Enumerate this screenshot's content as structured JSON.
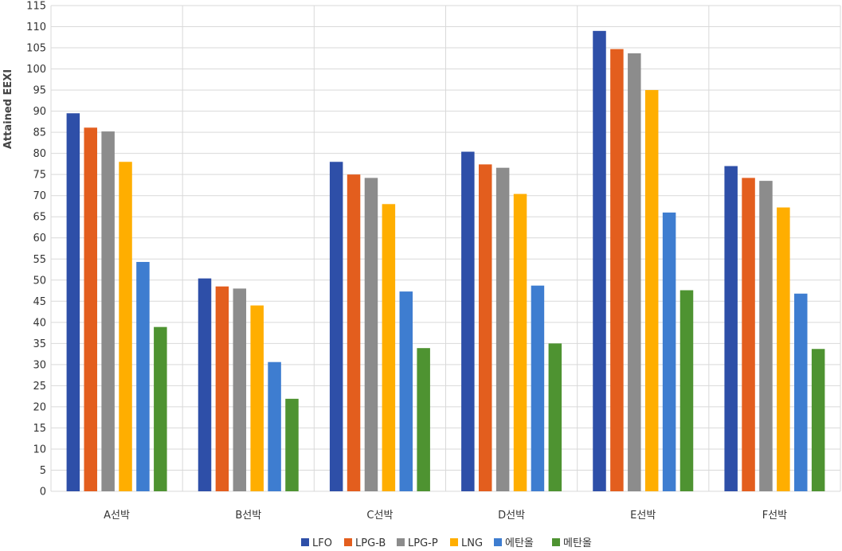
{
  "chart_data": {
    "type": "bar",
    "ylabel": "Attained EEXI",
    "xlabel": "",
    "ylim": [
      0,
      115
    ],
    "ytick_step": 5,
    "grid": true,
    "legend_position": "bottom",
    "categories": [
      "A선박",
      "B선박",
      "C선박",
      "D선박",
      "E선박",
      "F선박"
    ],
    "series": [
      {
        "name": "LFO",
        "color": "#2E4FA8",
        "values": [
          89.5,
          50.4,
          78.0,
          80.4,
          109.0,
          77.0
        ]
      },
      {
        "name": "LPG-B",
        "color": "#E35E1E",
        "values": [
          86.1,
          48.5,
          75.0,
          77.4,
          104.7,
          74.2
        ]
      },
      {
        "name": "LPG-P",
        "color": "#8C8C8C",
        "values": [
          85.2,
          48.0,
          74.2,
          76.6,
          103.7,
          73.5
        ]
      },
      {
        "name": "LNG",
        "color": "#FFAE00",
        "values": [
          78.0,
          44.0,
          68.0,
          70.4,
          95.0,
          67.2
        ]
      },
      {
        "name": "에탄올",
        "color": "#3E7DD0",
        "values": [
          54.3,
          30.6,
          47.3,
          48.7,
          66.0,
          46.8
        ]
      },
      {
        "name": "메탄올",
        "color": "#4E9331",
        "values": [
          38.9,
          21.9,
          33.9,
          35.0,
          47.6,
          33.7
        ]
      }
    ]
  }
}
